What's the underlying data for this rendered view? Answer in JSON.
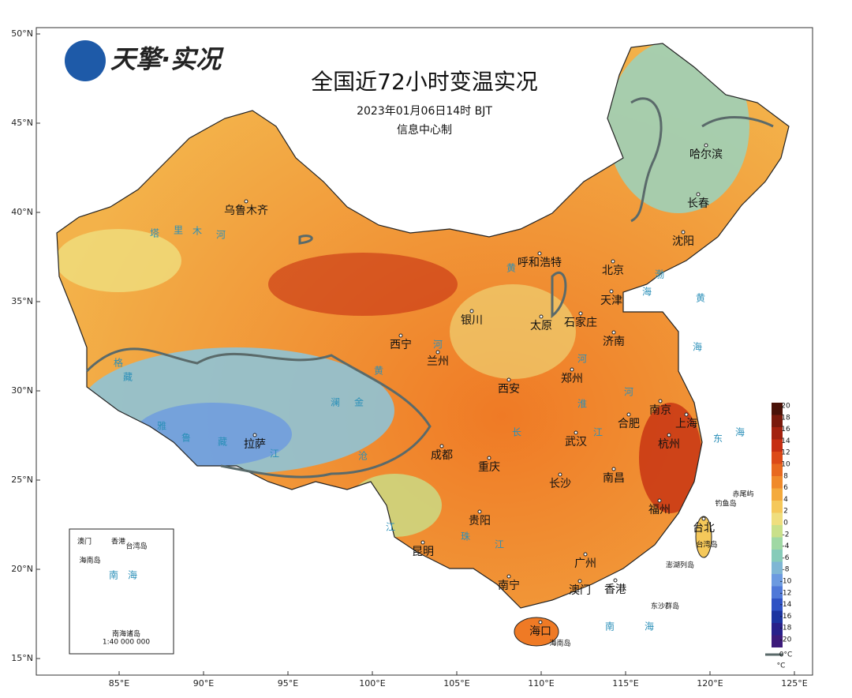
{
  "header": {
    "logo": "天擎·实况",
    "title": "全国近72小时变温实况",
    "subtitle": "2023年01月06日14时 BJT",
    "credit": "信息中心制"
  },
  "axes": {
    "lon_ticks": [
      {
        "value": 85,
        "label": "85°E"
      },
      {
        "value": 90,
        "label": "90°E"
      },
      {
        "value": 95,
        "label": "95°E"
      },
      {
        "value": 100,
        "label": "100°E"
      },
      {
        "value": 105,
        "label": "105°E"
      },
      {
        "value": 110,
        "label": "110°E"
      },
      {
        "value": 115,
        "label": "115°E"
      },
      {
        "value": 120,
        "label": "120°E"
      },
      {
        "value": 125,
        "label": "125°E"
      }
    ],
    "lat_ticks": [
      {
        "value": 50,
        "label": "50°N"
      },
      {
        "value": 45,
        "label": "45°N"
      },
      {
        "value": 40,
        "label": "40°N"
      },
      {
        "value": 35,
        "label": "35°N"
      },
      {
        "value": 30,
        "label": "30°N"
      },
      {
        "value": 25,
        "label": "25°N"
      },
      {
        "value": 20,
        "label": "20°N"
      },
      {
        "value": 15,
        "label": "15°N"
      }
    ]
  },
  "cities": [
    "乌鲁木齐",
    "呼和浩特",
    "哈尔滨",
    "长春",
    "沈阳",
    "北京",
    "天津",
    "银川",
    "太原",
    "石家庄",
    "济南",
    "西宁",
    "兰州",
    "郑州",
    "西安",
    "南京",
    "合肥",
    "上海",
    "武汉",
    "成都",
    "重庆",
    "杭州",
    "长沙",
    "南昌",
    "拉萨",
    "贵阳",
    "福州",
    "台北",
    "昆明",
    "南宁",
    "广州",
    "澳门",
    "香港",
    "海口"
  ],
  "water_labels": [
    "塔",
    "里",
    "木",
    "河",
    "黄",
    "河",
    "黄",
    "雅",
    "鲁",
    "藏",
    "江",
    "格",
    "藏",
    "澜",
    "金",
    "沧",
    "江",
    "长",
    "江",
    "淮",
    "河",
    "河",
    "珠",
    "江",
    "渤",
    "海",
    "黄",
    "海",
    "东",
    "海",
    "南",
    "海"
  ],
  "islands": [
    "赤尾屿",
    "钓鱼岛",
    "台湾岛",
    "澎湖列岛",
    "东沙群岛",
    "海南岛"
  ],
  "inset": {
    "labels": [
      "澳门",
      "香港",
      "台湾岛",
      "海南岛",
      "南",
      "海",
      "南海诸岛",
      "1:40 000 000"
    ]
  },
  "legend": {
    "ticks": [
      20,
      18,
      16,
      14,
      12,
      10,
      8,
      6,
      4,
      2,
      0,
      -2,
      -4,
      -6,
      -8,
      -10,
      -12,
      -14,
      -16,
      -18,
      -20
    ],
    "colors": [
      "#4a1208",
      "#7a1a0c",
      "#a3220f",
      "#c62f12",
      "#dc4a18",
      "#e8691f",
      "#f08a2a",
      "#f4aa3c",
      "#f5c85a",
      "#efde7e",
      "#c9e08a",
      "#9fd8a4",
      "#86cbb9",
      "#7fb6d4",
      "#6c9ae0",
      "#4f78d8",
      "#2f52c4",
      "#1c34a0",
      "#28208a",
      "#3c1a7a"
    ],
    "unit": "°C",
    "contour_label": "0°C"
  }
}
